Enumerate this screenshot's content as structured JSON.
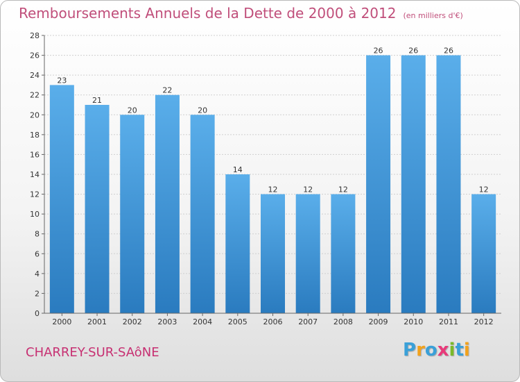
{
  "chart_data": {
    "type": "bar",
    "title": "Remboursements Annuels de la Dette de 2000 à 2012",
    "subtitle": "(en milliers d'€)",
    "categories": [
      "2000",
      "2001",
      "2002",
      "2003",
      "2004",
      "2005",
      "2006",
      "2007",
      "2008",
      "2009",
      "2010",
      "2011",
      "2012"
    ],
    "values": [
      23,
      21,
      20,
      22,
      20,
      14,
      12,
      12,
      12,
      26,
      26,
      26,
      12
    ],
    "ylim": [
      0,
      28
    ],
    "yticks": [
      0,
      2,
      4,
      6,
      8,
      10,
      12,
      14,
      16,
      18,
      20,
      22,
      24,
      26,
      28
    ],
    "grid": true,
    "xlabel": "",
    "ylabel": "",
    "bar_color_top": "#5aaeea",
    "bar_color_bottom": "#2a7bbf"
  },
  "footer": {
    "commune": "CHARREY-SUR-SAôNE",
    "logo_letters": [
      "P",
      "r",
      "o",
      "x",
      "i",
      "t",
      "i"
    ],
    "logo_colors": [
      "#3aa0d8",
      "#f2a21c",
      "#3aa0d8",
      "#e83a7a",
      "#7ab929",
      "#3aa0d8",
      "#f2a21c"
    ]
  }
}
